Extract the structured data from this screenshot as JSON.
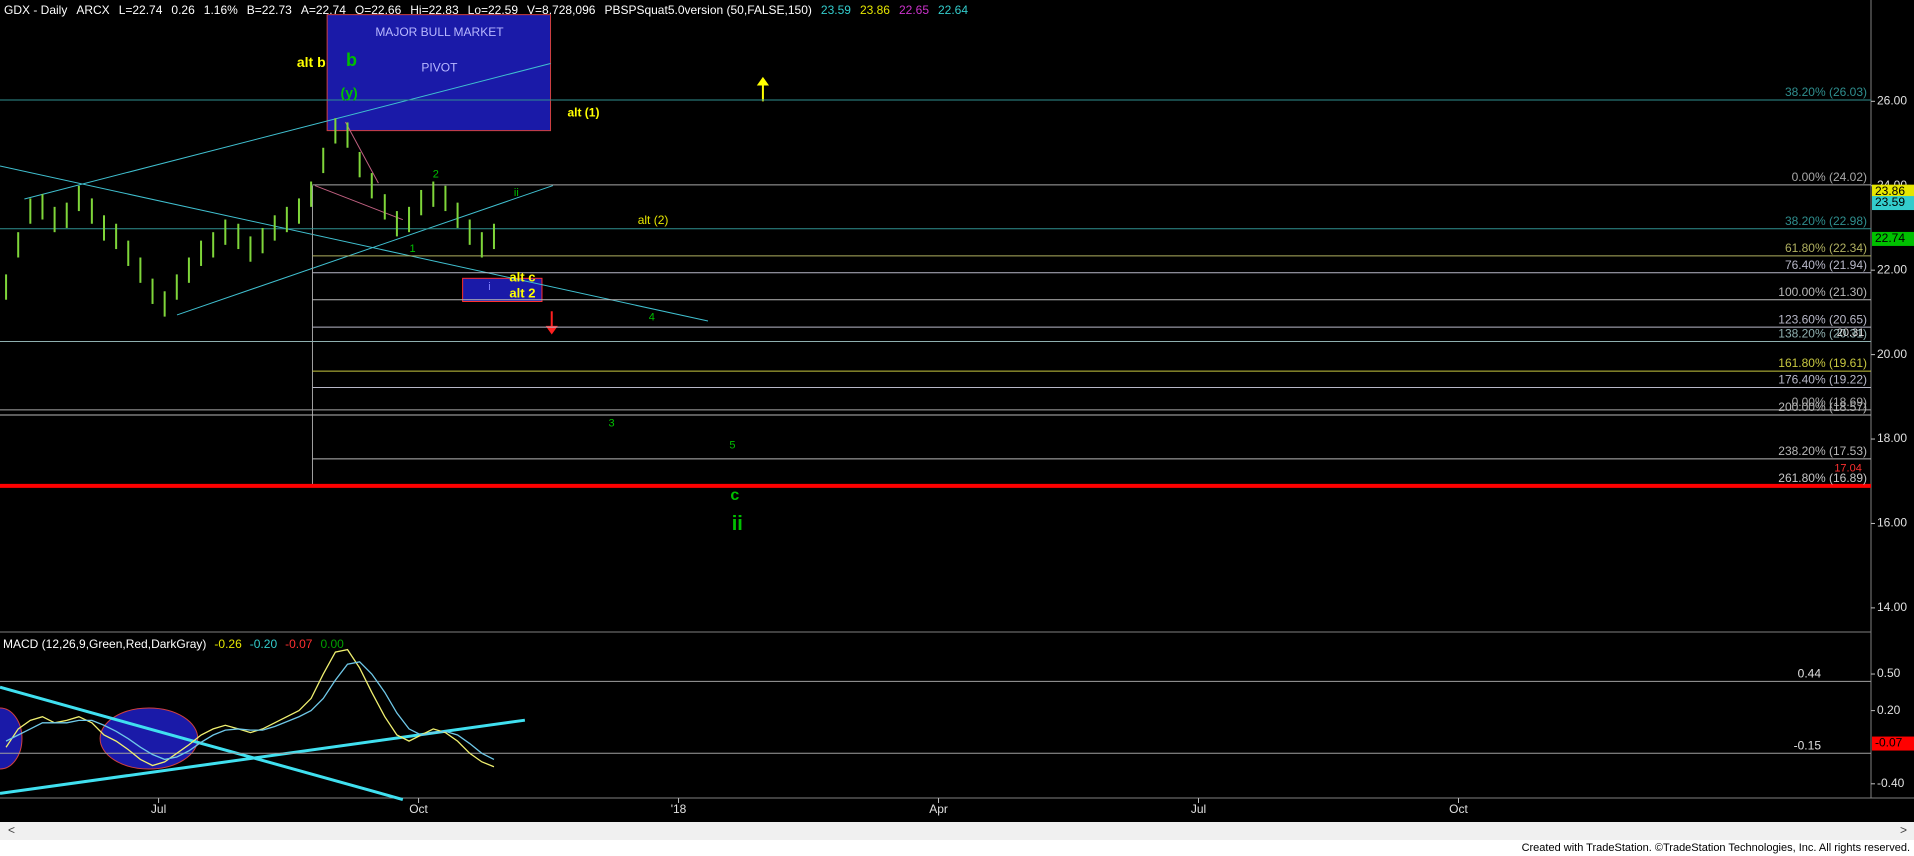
{
  "header": [
    {
      "text": "GDX - Daily",
      "color": "#ffffff"
    },
    {
      "text": "ARCX",
      "color": "#ffffff"
    },
    {
      "text": "L=22.74",
      "color": "#ffffff"
    },
    {
      "text": "0.26",
      "color": "#ffffff"
    },
    {
      "text": "1.16%",
      "color": "#ffffff"
    },
    {
      "text": "B=22.73",
      "color": "#ffffff"
    },
    {
      "text": "A=22.74",
      "color": "#ffffff"
    },
    {
      "text": "O=22.66",
      "color": "#ffffff"
    },
    {
      "text": "Hi=22.83",
      "color": "#ffffff"
    },
    {
      "text": "Lo=22.59",
      "color": "#ffffff"
    },
    {
      "text": "V=8,728,096",
      "color": "#ffffff"
    },
    {
      "text": "PBSPSquat5.0version (50,FALSE,150)",
      "color": "#ffffff"
    },
    {
      "text": "23.59",
      "color": "#33cccc"
    },
    {
      "text": "23.86",
      "color": "#e6e600"
    },
    {
      "text": "22.65",
      "color": "#cc33cc"
    },
    {
      "text": "22.64",
      "color": "#33cccc"
    }
  ],
  "chart_data": {
    "type": "ohlc",
    "x": [
      -1.76,
      -1.62,
      -1.48,
      -1.34,
      -1.2,
      -1.06,
      -0.92,
      -0.77,
      -0.63,
      -0.49,
      -0.35,
      -0.21,
      -0.07,
      0.07,
      0.21,
      0.35,
      0.49,
      0.63,
      0.77,
      0.92,
      1.06,
      1.2,
      1.34,
      1.48,
      1.62,
      1.76,
      1.9,
      2.04,
      2.18,
      2.32,
      2.46,
      2.61,
      2.75,
      2.89,
      3.03,
      3.17,
      3.31,
      3.45,
      3.59,
      3.73,
      3.87
    ],
    "high": [
      21.9,
      22.9,
      23.7,
      23.8,
      23.5,
      23.6,
      24.0,
      23.7,
      23.3,
      23.1,
      22.7,
      22.3,
      21.8,
      21.5,
      21.9,
      22.3,
      22.7,
      22.9,
      23.2,
      23.1,
      22.8,
      23.0,
      23.3,
      23.5,
      23.7,
      24.1,
      24.9,
      25.6,
      25.5,
      24.8,
      24.3,
      23.8,
      23.4,
      23.5,
      23.9,
      24.1,
      24.0,
      23.6,
      23.2,
      22.9,
      23.1
    ],
    "low": [
      21.3,
      22.3,
      23.1,
      23.2,
      22.9,
      23.0,
      23.4,
      23.1,
      22.7,
      22.5,
      22.1,
      21.7,
      21.2,
      20.9,
      21.3,
      21.7,
      22.1,
      22.3,
      22.6,
      22.5,
      22.2,
      22.4,
      22.7,
      22.9,
      23.1,
      23.5,
      24.3,
      25.0,
      24.9,
      24.2,
      23.7,
      23.2,
      22.8,
      22.9,
      23.3,
      23.5,
      23.4,
      23.0,
      22.6,
      22.3,
      22.5
    ],
    "color": "#7fd63a",
    "xlim": [
      -1.83,
      19.76
    ],
    "xticks": [
      {
        "value": 0,
        "label": "Jul"
      },
      {
        "value": 3,
        "label": "Oct"
      },
      {
        "value": 6,
        "label": "'18"
      },
      {
        "value": 9,
        "label": "Apr"
      },
      {
        "value": 12,
        "label": "Jul"
      },
      {
        "value": 15,
        "label": "Oct"
      }
    ],
    "ylim": [
      13.5,
      28.4
    ],
    "yticks": [
      {
        "value": 26,
        "label": "26.00"
      },
      {
        "value": 24,
        "label": "24.00"
      },
      {
        "value": 22,
        "label": "22.00"
      },
      {
        "value": 20,
        "label": "20.00"
      },
      {
        "value": 18,
        "label": "18.00"
      },
      {
        "value": 16,
        "label": "16.00"
      },
      {
        "value": 14,
        "label": "14.00"
      }
    ],
    "price_flags": [
      {
        "value": 23.86,
        "label": "23.86",
        "color": "#e6e600"
      },
      {
        "value": 23.59,
        "label": "23.59",
        "color": "#33cccc"
      },
      {
        "value": 22.74,
        "label": "22.74",
        "color": "#00c000"
      }
    ],
    "fib_levels": [
      {
        "value": 26.03,
        "label": "38.20% (26.03)",
        "color": "#2f8f8f"
      },
      {
        "value": 24.02,
        "label": "0.00% (24.02)",
        "color": "#a8a8a8"
      },
      {
        "value": 22.98,
        "label": "38.20% (22.98)",
        "color": "#2f8f8f"
      },
      {
        "value": 22.34,
        "label": "61.80% (22.34)",
        "color": "#b0b060"
      },
      {
        "value": 21.94,
        "label": "76.40% (21.94)",
        "color": "#b8b8c8"
      },
      {
        "value": 21.3,
        "label": "100.00% (21.30)",
        "color": "#b8b8b8"
      },
      {
        "value": 20.65,
        "label": "123.60% (20.65)",
        "color": "#b8b8c8"
      },
      {
        "value": 20.31,
        "label": "138.20% (20.31)",
        "color": "#8fb0b0"
      },
      {
        "value": 19.61,
        "label": "161.80% (19.61)",
        "color": "#c8c840"
      },
      {
        "value": 19.22,
        "label": "176.40% (19.22)",
        "color": "#b8b8c8"
      },
      {
        "value": 18.69,
        "label": "0.00% (18.69)",
        "color": "#a8a8a8"
      },
      {
        "value": 18.57,
        "label": "200.00% (18.57)",
        "color": "#b8b8b8"
      },
      {
        "value": 17.53,
        "label": "238.20% (17.53)",
        "color": "#b8b8b8"
      },
      {
        "value": 16.89,
        "label": "261.80% (16.89)",
        "color": "#ff0000"
      }
    ],
    "annotations": [
      {
        "text": "alt b",
        "color": "#ffff00"
      },
      {
        "text": "b",
        "color": "#00c000"
      },
      {
        "text": "(y)",
        "color": "#00c000"
      },
      {
        "text": "alt (1)",
        "color": "#ffff00"
      },
      {
        "text": "2",
        "color": "#00c000"
      },
      {
        "text": "ii",
        "color": "#00c000"
      },
      {
        "text": "alt (2)",
        "color": "#e6e600"
      },
      {
        "text": "1",
        "color": "#00c000"
      },
      {
        "text": "i",
        "color": "#8080ff"
      },
      {
        "text": "alt c",
        "color": "#ffff00"
      },
      {
        "text": "alt 2",
        "color": "#ffff00"
      },
      {
        "text": "4",
        "color": "#00c000"
      },
      {
        "text": "3",
        "color": "#00c000"
      },
      {
        "text": "5",
        "color": "#00c000"
      },
      {
        "text": "c",
        "color": "#00c000"
      },
      {
        "text": "ii",
        "color": "#00c000"
      },
      {
        "text": "20.31",
        "color": "#e0e0e0"
      },
      {
        "text": "17.04",
        "color": "#ff3030"
      }
    ],
    "box_labels": [
      "MAJOR BULL MARKET",
      "PIVOT"
    ],
    "macd": {
      "title": "MACD (12,26,9,Green,Red,DarkGray)",
      "readouts": [
        {
          "text": "-0.26",
          "color": "#e6e600"
        },
        {
          "text": "-0.20",
          "color": "#33cccc"
        },
        {
          "text": "-0.07",
          "color": "#ff3030"
        },
        {
          "text": "0.00",
          "color": "#00a000"
        }
      ],
      "ylim": [
        -0.5,
        0.82
      ],
      "yticks": [
        {
          "value": 0.5,
          "label": "0.50"
        },
        {
          "value": 0.2,
          "label": "0.20"
        },
        {
          "value": -0.4,
          "label": "-0.40"
        }
      ],
      "series": [
        {
          "color": "#f0f070",
          "values": [
            -0.1,
            0.05,
            0.12,
            0.15,
            0.1,
            0.12,
            0.15,
            0.1,
            0.0,
            -0.05,
            -0.12,
            -0.2,
            -0.25,
            -0.22,
            -0.15,
            -0.08,
            0.0,
            0.05,
            0.08,
            0.05,
            0.02,
            0.05,
            0.1,
            0.15,
            0.2,
            0.3,
            0.5,
            0.68,
            0.7,
            0.55,
            0.35,
            0.15,
            0.0,
            -0.05,
            0.0,
            0.05,
            0.02,
            -0.05,
            -0.15,
            -0.22,
            -0.26
          ]
        },
        {
          "color": "#6fc8e8",
          "values": [
            -0.05,
            0.0,
            0.05,
            0.1,
            0.1,
            0.1,
            0.12,
            0.12,
            0.08,
            0.03,
            -0.03,
            -0.1,
            -0.16,
            -0.2,
            -0.18,
            -0.13,
            -0.06,
            0.0,
            0.04,
            0.05,
            0.04,
            0.04,
            0.07,
            0.11,
            0.15,
            0.2,
            0.3,
            0.45,
            0.58,
            0.6,
            0.5,
            0.35,
            0.18,
            0.05,
            0.0,
            0.02,
            0.03,
            0.0,
            -0.07,
            -0.15,
            -0.2
          ]
        }
      ],
      "levels": [
        {
          "value": 0.44,
          "label": "0.44"
        },
        {
          "value": -0.15,
          "label": "-0.15"
        }
      ],
      "flag": {
        "value": -0.07,
        "label": "-0.07",
        "color": "#ff0000"
      }
    }
  },
  "footer": "Created with TradeStation. ©TradeStation Technologies, Inc. All rights reserved."
}
